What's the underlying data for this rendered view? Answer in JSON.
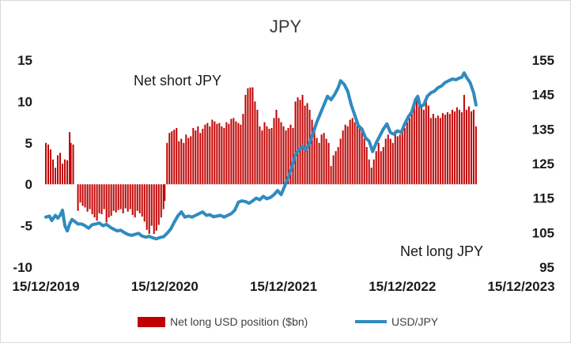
{
  "chart_data": {
    "type": "bar+line",
    "title": "JPY",
    "left_axis": {
      "ylim": [
        -10,
        15
      ],
      "ticks": [
        "-10",
        "-5",
        "0",
        "5",
        "10",
        "15"
      ]
    },
    "right_axis": {
      "ylim": [
        95,
        155
      ],
      "ticks": [
        "95",
        "105",
        "115",
        "125",
        "135",
        "145",
        "155"
      ]
    },
    "x_ticks": [
      "15/12/2019",
      "15/12/2020",
      "15/12/2021",
      "15/12/2022",
      "15/12/2023"
    ],
    "annotations": {
      "upper": "Net short JPY",
      "lower": "Net long JPY"
    },
    "legend_position": "bottom",
    "series": [
      {
        "name": "Net long USD position ($bn)",
        "axis": "left",
        "kind": "bar",
        "color": "#c00000",
        "points": [
          [
            0.0,
            5.0
          ],
          [
            0.02,
            4.8
          ],
          [
            0.04,
            4.2
          ],
          [
            0.06,
            3.0
          ],
          [
            0.08,
            2.0
          ],
          [
            0.1,
            3.5
          ],
          [
            0.12,
            3.8
          ],
          [
            0.14,
            2.5
          ],
          [
            0.16,
            3.0
          ],
          [
            0.18,
            2.9
          ],
          [
            0.2,
            6.3
          ],
          [
            0.21,
            5.0
          ],
          [
            0.23,
            4.8
          ],
          [
            0.27,
            -3.2
          ],
          [
            0.29,
            -2.2
          ],
          [
            0.31,
            -2.6
          ],
          [
            0.33,
            -2.8
          ],
          [
            0.35,
            -3.3
          ],
          [
            0.37,
            -3.0
          ],
          [
            0.39,
            -3.6
          ],
          [
            0.41,
            -4.0
          ],
          [
            0.43,
            -4.4
          ],
          [
            0.45,
            -3.5
          ],
          [
            0.47,
            -3.6
          ],
          [
            0.49,
            -3.0
          ],
          [
            0.51,
            -4.6
          ],
          [
            0.53,
            -4.0
          ],
          [
            0.55,
            -3.8
          ],
          [
            0.57,
            -3.2
          ],
          [
            0.59,
            -3.4
          ],
          [
            0.61,
            -3.1
          ],
          [
            0.63,
            -3.0
          ],
          [
            0.65,
            -3.5
          ],
          [
            0.67,
            -2.9
          ],
          [
            0.69,
            -3.3
          ],
          [
            0.71,
            -3.0
          ],
          [
            0.73,
            -3.7
          ],
          [
            0.75,
            -4.0
          ],
          [
            0.77,
            -3.2
          ],
          [
            0.79,
            -3.5
          ],
          [
            0.81,
            -3.9
          ],
          [
            0.83,
            -4.5
          ],
          [
            0.85,
            -5.5
          ],
          [
            0.87,
            -6.0
          ],
          [
            0.89,
            -5.0
          ],
          [
            0.91,
            -6.0
          ],
          [
            0.93,
            -5.6
          ],
          [
            0.95,
            -4.9
          ],
          [
            0.97,
            -4.0
          ],
          [
            0.99,
            -3.0
          ],
          [
            1.0,
            -2.0
          ],
          [
            1.02,
            5.0
          ],
          [
            1.04,
            6.2
          ],
          [
            1.06,
            6.4
          ],
          [
            1.08,
            6.6
          ],
          [
            1.1,
            6.8
          ],
          [
            1.12,
            5.2
          ],
          [
            1.14,
            5.5
          ],
          [
            1.16,
            5.0
          ],
          [
            1.18,
            6.0
          ],
          [
            1.2,
            5.6
          ],
          [
            1.22,
            5.8
          ],
          [
            1.24,
            6.8
          ],
          [
            1.26,
            6.5
          ],
          [
            1.28,
            7.0
          ],
          [
            1.3,
            6.2
          ],
          [
            1.32,
            6.7
          ],
          [
            1.34,
            7.2
          ],
          [
            1.36,
            7.4
          ],
          [
            1.38,
            7.0
          ],
          [
            1.4,
            7.8
          ],
          [
            1.42,
            7.6
          ],
          [
            1.44,
            7.3
          ],
          [
            1.46,
            7.4
          ],
          [
            1.48,
            7.0
          ],
          [
            1.5,
            6.8
          ],
          [
            1.52,
            7.5
          ],
          [
            1.54,
            7.3
          ],
          [
            1.56,
            7.9
          ],
          [
            1.58,
            8.0
          ],
          [
            1.6,
            7.6
          ],
          [
            1.62,
            7.4
          ],
          [
            1.64,
            7.2
          ],
          [
            1.66,
            8.5
          ],
          [
            1.68,
            10.8
          ],
          [
            1.7,
            11.6
          ],
          [
            1.72,
            11.7
          ],
          [
            1.74,
            11.7
          ],
          [
            1.76,
            10.0
          ],
          [
            1.78,
            9.0
          ],
          [
            1.8,
            7.0
          ],
          [
            1.82,
            6.5
          ],
          [
            1.84,
            7.5
          ],
          [
            1.86,
            7.0
          ],
          [
            1.88,
            6.7
          ],
          [
            1.9,
            6.8
          ],
          [
            1.92,
            8.0
          ],
          [
            1.94,
            9.0
          ],
          [
            1.96,
            8.0
          ],
          [
            1.98,
            7.5
          ],
          [
            2.0,
            7.0
          ],
          [
            2.02,
            6.5
          ],
          [
            2.04,
            6.8
          ],
          [
            2.06,
            7.2
          ],
          [
            2.08,
            6.8
          ],
          [
            2.1,
            10.0
          ],
          [
            2.12,
            10.5
          ],
          [
            2.14,
            10.2
          ],
          [
            2.16,
            10.8
          ],
          [
            2.18,
            9.5
          ],
          [
            2.2,
            9.8
          ],
          [
            2.22,
            9.0
          ],
          [
            2.24,
            7.8
          ],
          [
            2.26,
            7.0
          ],
          [
            2.28,
            5.6
          ],
          [
            2.3,
            5.0
          ],
          [
            2.32,
            6.0
          ],
          [
            2.34,
            6.2
          ],
          [
            2.36,
            5.5
          ],
          [
            2.38,
            5.0
          ],
          [
            2.4,
            2.2
          ],
          [
            2.42,
            3.5
          ],
          [
            2.44,
            4.0
          ],
          [
            2.46,
            4.5
          ],
          [
            2.48,
            5.5
          ],
          [
            2.5,
            6.5
          ],
          [
            2.52,
            7.2
          ],
          [
            2.54,
            7.0
          ],
          [
            2.56,
            7.8
          ],
          [
            2.58,
            8.0
          ],
          [
            2.6,
            7.5
          ],
          [
            2.62,
            7.8
          ],
          [
            2.64,
            7.0
          ],
          [
            2.66,
            6.5
          ],
          [
            2.68,
            5.5
          ],
          [
            2.7,
            4.5
          ],
          [
            2.72,
            3.0
          ],
          [
            2.74,
            2.0
          ],
          [
            2.76,
            3.0
          ],
          [
            2.78,
            4.0
          ],
          [
            2.8,
            5.0
          ],
          [
            2.82,
            4.0
          ],
          [
            2.84,
            4.5
          ],
          [
            2.86,
            5.5
          ],
          [
            2.88,
            6.0
          ],
          [
            2.9,
            5.5
          ],
          [
            2.92,
            5.0
          ],
          [
            2.94,
            6.5
          ],
          [
            2.96,
            5.8
          ],
          [
            2.98,
            6.0
          ],
          [
            3.0,
            6.5
          ],
          [
            3.02,
            6.8
          ],
          [
            3.04,
            7.5
          ],
          [
            3.06,
            8.0
          ],
          [
            3.08,
            9.0
          ],
          [
            3.1,
            10.0
          ],
          [
            3.12,
            10.6
          ],
          [
            3.14,
            10.2
          ],
          [
            3.16,
            9.5
          ],
          [
            3.18,
            9.0
          ],
          [
            3.2,
            10.0
          ],
          [
            3.22,
            9.5
          ],
          [
            3.24,
            8.0
          ],
          [
            3.26,
            8.5
          ],
          [
            3.28,
            8.0
          ],
          [
            3.3,
            8.3
          ],
          [
            3.32,
            8.0
          ],
          [
            3.34,
            8.6
          ],
          [
            3.36,
            8.4
          ],
          [
            3.38,
            8.7
          ],
          [
            3.4,
            8.5
          ],
          [
            3.42,
            9.0
          ],
          [
            3.44,
            8.8
          ],
          [
            3.46,
            9.3
          ],
          [
            3.48,
            9.0
          ],
          [
            3.5,
            8.7
          ],
          [
            3.52,
            10.8
          ],
          [
            3.54,
            9.0
          ],
          [
            3.56,
            9.4
          ],
          [
            3.58,
            8.8
          ],
          [
            3.6,
            9.0
          ],
          [
            3.62,
            7.0
          ]
        ]
      },
      {
        "name": "USD/JPY",
        "axis": "right",
        "kind": "line",
        "color": "#2e8bc0",
        "points": [
          [
            0.0,
            109.5
          ],
          [
            0.03,
            109.8
          ],
          [
            0.05,
            108.5
          ],
          [
            0.08,
            110.0
          ],
          [
            0.1,
            109.2
          ],
          [
            0.12,
            110.0
          ],
          [
            0.14,
            111.5
          ],
          [
            0.16,
            107.0
          ],
          [
            0.18,
            105.5
          ],
          [
            0.2,
            107.5
          ],
          [
            0.22,
            108.8
          ],
          [
            0.24,
            108.3
          ],
          [
            0.27,
            107.5
          ],
          [
            0.3,
            107.5
          ],
          [
            0.33,
            107.0
          ],
          [
            0.36,
            106.3
          ],
          [
            0.39,
            107.3
          ],
          [
            0.42,
            107.5
          ],
          [
            0.45,
            107.8
          ],
          [
            0.48,
            107.0
          ],
          [
            0.51,
            107.4
          ],
          [
            0.54,
            106.6
          ],
          [
            0.57,
            106.0
          ],
          [
            0.6,
            105.5
          ],
          [
            0.63,
            105.7
          ],
          [
            0.66,
            105.0
          ],
          [
            0.69,
            104.5
          ],
          [
            0.72,
            104.2
          ],
          [
            0.75,
            104.5
          ],
          [
            0.78,
            104.8
          ],
          [
            0.81,
            104.0
          ],
          [
            0.84,
            103.7
          ],
          [
            0.87,
            103.9
          ],
          [
            0.9,
            103.5
          ],
          [
            0.93,
            103.2
          ],
          [
            0.96,
            103.6
          ],
          [
            0.99,
            103.8
          ],
          [
            1.02,
            104.8
          ],
          [
            1.05,
            106.0
          ],
          [
            1.08,
            108.0
          ],
          [
            1.11,
            109.8
          ],
          [
            1.14,
            111.0
          ],
          [
            1.17,
            109.5
          ],
          [
            1.2,
            109.8
          ],
          [
            1.23,
            109.5
          ],
          [
            1.26,
            110.0
          ],
          [
            1.29,
            110.5
          ],
          [
            1.32,
            111.0
          ],
          [
            1.35,
            110.0
          ],
          [
            1.38,
            110.2
          ],
          [
            1.41,
            109.6
          ],
          [
            1.44,
            109.8
          ],
          [
            1.47,
            110.0
          ],
          [
            1.5,
            109.5
          ],
          [
            1.53,
            110.0
          ],
          [
            1.56,
            110.5
          ],
          [
            1.59,
            111.5
          ],
          [
            1.62,
            113.8
          ],
          [
            1.65,
            114.2
          ],
          [
            1.68,
            114.0
          ],
          [
            1.71,
            113.5
          ],
          [
            1.74,
            114.2
          ],
          [
            1.77,
            115.0
          ],
          [
            1.8,
            114.5
          ],
          [
            1.83,
            115.5
          ],
          [
            1.86,
            114.8
          ],
          [
            1.89,
            115.2
          ],
          [
            1.92,
            116.0
          ],
          [
            1.95,
            117.2
          ],
          [
            1.98,
            116.0
          ],
          [
            2.01,
            118.5
          ],
          [
            2.04,
            121.0
          ],
          [
            2.07,
            124.0
          ],
          [
            2.1,
            127.5
          ],
          [
            2.13,
            129.0
          ],
          [
            2.16,
            130.0
          ],
          [
            2.19,
            129.0
          ],
          [
            2.22,
            131.0
          ],
          [
            2.25,
            134.0
          ],
          [
            2.28,
            137.0
          ],
          [
            2.31,
            139.5
          ],
          [
            2.34,
            142.0
          ],
          [
            2.37,
            144.5
          ],
          [
            2.4,
            143.5
          ],
          [
            2.43,
            145.0
          ],
          [
            2.46,
            147.0
          ],
          [
            2.48,
            149.0
          ],
          [
            2.51,
            148.0
          ],
          [
            2.54,
            146.0
          ],
          [
            2.57,
            142.0
          ],
          [
            2.6,
            139.0
          ],
          [
            2.63,
            136.0
          ],
          [
            2.66,
            135.0
          ],
          [
            2.69,
            132.5
          ],
          [
            2.72,
            131.5
          ],
          [
            2.75,
            128.5
          ],
          [
            2.78,
            131.0
          ],
          [
            2.81,
            133.0
          ],
          [
            2.84,
            135.0
          ],
          [
            2.87,
            136.5
          ],
          [
            2.9,
            134.0
          ],
          [
            2.93,
            133.5
          ],
          [
            2.96,
            134.5
          ],
          [
            2.99,
            134.0
          ],
          [
            3.02,
            136.5
          ],
          [
            3.05,
            138.5
          ],
          [
            3.08,
            140.0
          ],
          [
            3.11,
            143.5
          ],
          [
            3.13,
            144.5
          ],
          [
            3.15,
            141.5
          ],
          [
            3.18,
            142.0
          ],
          [
            3.21,
            144.5
          ],
          [
            3.24,
            145.5
          ],
          [
            3.27,
            146.0
          ],
          [
            3.3,
            147.0
          ],
          [
            3.33,
            147.5
          ],
          [
            3.36,
            148.5
          ],
          [
            3.39,
            149.0
          ],
          [
            3.42,
            149.5
          ],
          [
            3.45,
            149.3
          ],
          [
            3.48,
            149.8
          ],
          [
            3.5,
            150.0
          ],
          [
            3.52,
            151.3
          ],
          [
            3.54,
            150.0
          ],
          [
            3.57,
            148.5
          ],
          [
            3.6,
            145.5
          ],
          [
            3.62,
            142.0
          ]
        ]
      }
    ]
  }
}
